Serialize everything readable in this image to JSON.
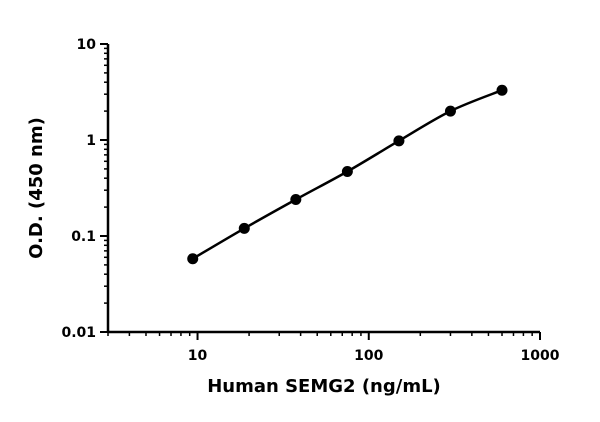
{
  "chart_data": {
    "type": "scatter",
    "xlabel": "Human SEMG2 (ng/mL)",
    "ylabel": "O.D. (450 nm)",
    "xscale": "log",
    "yscale": "log",
    "xlim": [
      3,
      1000
    ],
    "ylim": [
      0.01,
      10
    ],
    "x_ticks": [
      "10",
      "100",
      "1000"
    ],
    "y_ticks": [
      "10",
      "1",
      "0.1",
      "0.01"
    ],
    "grid": false,
    "series": [
      {
        "x": [
          9.375,
          18.75,
          37.5,
          75,
          150,
          300,
          600
        ],
        "y": [
          0.058,
          0.12,
          0.24,
          0.47,
          0.98,
          2.0,
          3.3
        ]
      }
    ]
  }
}
